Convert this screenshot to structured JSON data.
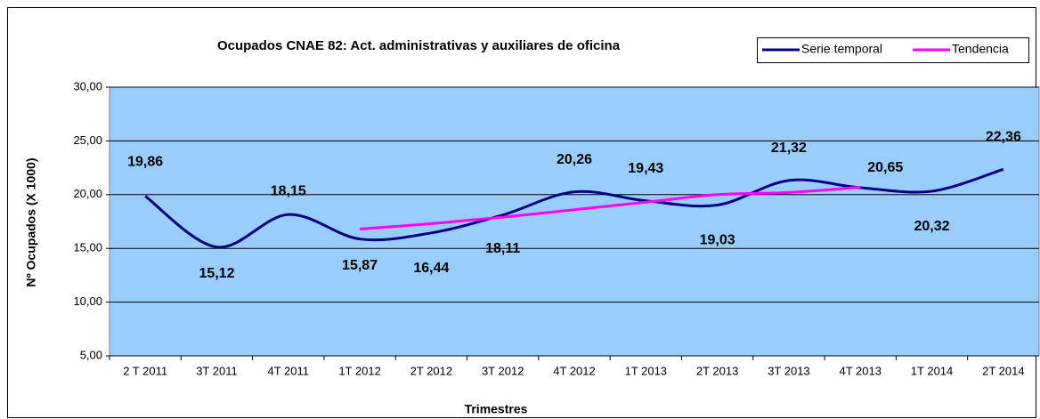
{
  "chart_data": {
    "type": "line",
    "title": "Ocupados CNAE 82: Act. administrativas y auxiliares de oficina",
    "y_label": "Nº Ocupados (X 1000)",
    "x_label": "Trimestres",
    "categories": [
      "2 T 2011",
      "3T 2011",
      "4T 2011",
      "1T 2012",
      "2T 2012",
      "3T 2012",
      "4T 2012",
      "1T 2013",
      "2T 2013",
      "3T 2013",
      "4T 2013",
      "1T 2014",
      "2T 2014"
    ],
    "series": [
      {
        "name": "Serie temporal",
        "color": "#000080",
        "values": [
          19.86,
          15.12,
          18.15,
          15.87,
          16.44,
          18.11,
          20.26,
          19.43,
          19.03,
          21.32,
          20.65,
          20.32,
          22.36
        ],
        "value_labels": [
          "19,86",
          "15,12",
          "18,15",
          "15,87",
          "16,44",
          "18,11",
          "20,26",
          "19,43",
          "19,03",
          "21,32",
          "20,65",
          "20,32",
          "22,36"
        ]
      },
      {
        "name": "Tendencia",
        "color": "#ff00ff",
        "values": [
          null,
          null,
          null,
          16.8,
          17.3,
          17.9,
          18.6,
          19.3,
          20.0,
          20.2,
          20.7,
          null,
          null
        ]
      }
    ],
    "ylim": [
      5,
      30
    ],
    "yticks": [
      {
        "value": 5,
        "label": "5,00"
      },
      {
        "value": 10,
        "label": "10,00"
      },
      {
        "value": 15,
        "label": "15,00"
      },
      {
        "value": 20,
        "label": "20,00"
      },
      {
        "value": 25,
        "label": "25,00"
      },
      {
        "value": 30,
        "label": "30,00"
      }
    ],
    "grid": true,
    "legend": "top-right"
  }
}
